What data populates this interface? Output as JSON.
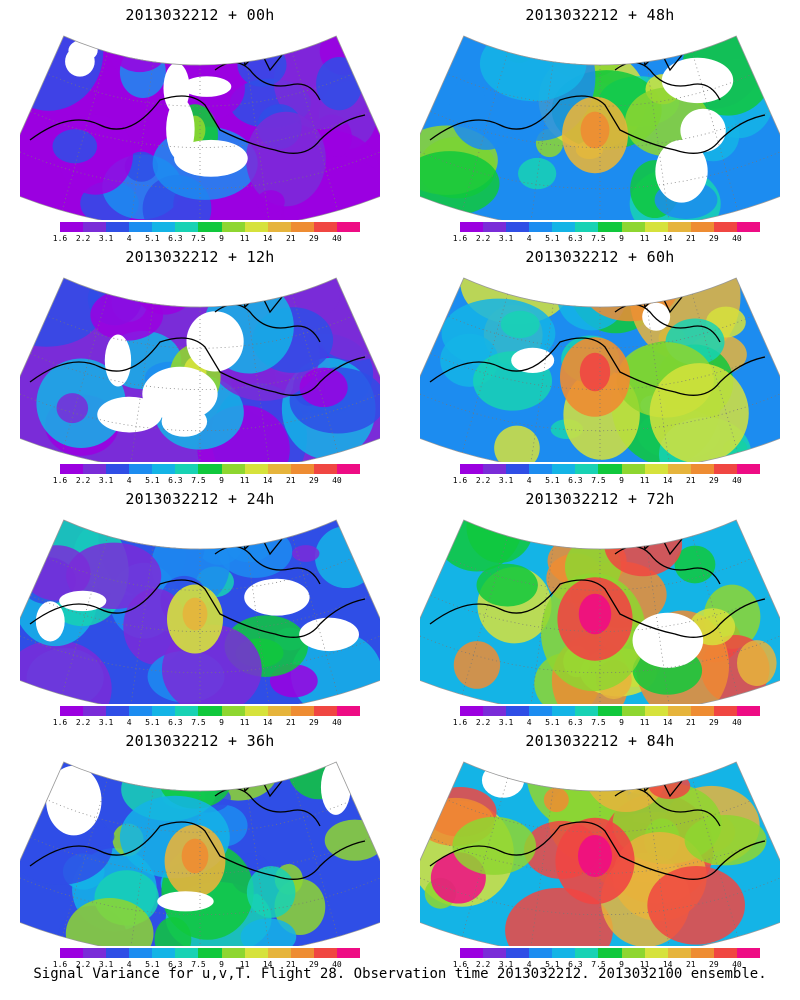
{
  "footer_caption": "Signal Variance for u,v,T. Flight 28. Observation time 2013032212. 2013032100 ensemble.",
  "colorbar": {
    "labels": [
      "1.6",
      "2.2",
      "3.1",
      "4",
      "5.1",
      "6.3",
      "7.5",
      "9",
      "11",
      "14",
      "21",
      "29",
      "40"
    ],
    "colors": [
      "#9b00e0",
      "#7a2cd8",
      "#2f4ee6",
      "#1c8cf0",
      "#14b4e6",
      "#18d2b4",
      "#10c83c",
      "#8ed630",
      "#d6e23c",
      "#e6b43c",
      "#ee8c32",
      "#f04642",
      "#ee0c84"
    ]
  },
  "panels": [
    {
      "title": "2013032212 + 00h",
      "level": 0.05
    },
    {
      "title": "2013032212 + 48h",
      "level": 0.55
    },
    {
      "title": "2013032212 + 12h",
      "level": 0.18
    },
    {
      "title": "2013032212 + 60h",
      "level": 0.65
    },
    {
      "title": "2013032212 + 24h",
      "level": 0.3
    },
    {
      "title": "2013032212 + 72h",
      "level": 0.78
    },
    {
      "title": "2013032212 + 36h",
      "level": 0.42
    },
    {
      "title": "2013032212 + 84h",
      "level": 0.88
    }
  ]
}
